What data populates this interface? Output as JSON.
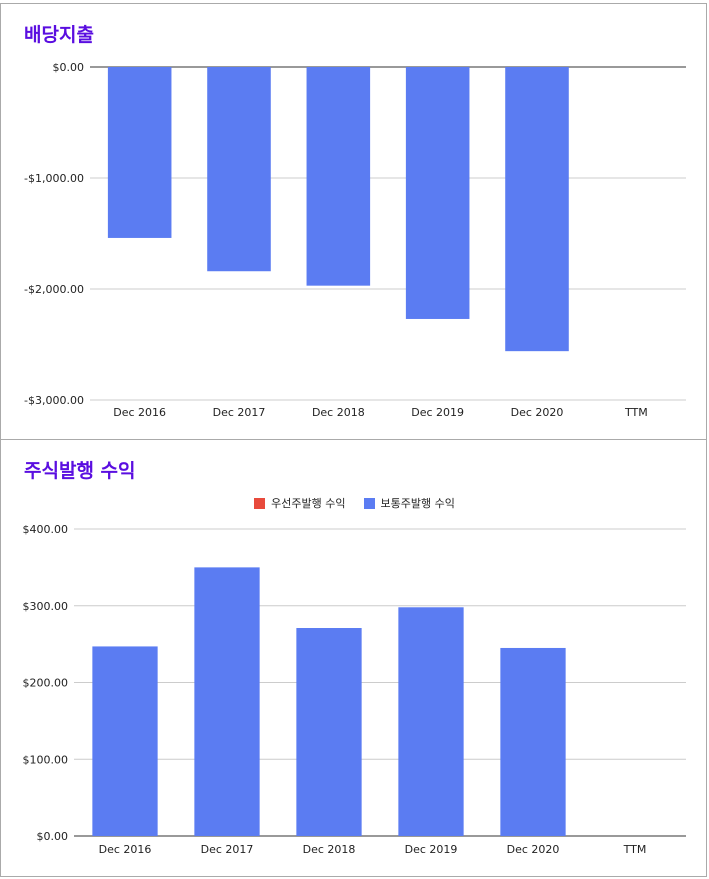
{
  "chart_data": [
    {
      "type": "bar",
      "title": "배당지출",
      "categories": [
        "Dec 2016",
        "Dec 2017",
        "Dec 2018",
        "Dec 2019",
        "Dec 2020",
        "TTM"
      ],
      "values": [
        -1540,
        -1840,
        -1970,
        -2270,
        -2560,
        null
      ],
      "ylim": [
        -3000,
        0
      ],
      "yticks": [
        0,
        -1000,
        -2000,
        -3000
      ],
      "ytick_labels": [
        "$0.00",
        "-$1,000.00",
        "-$2,000.00",
        "-$3,000.00"
      ],
      "grid": true,
      "color": "#5b7cf2"
    },
    {
      "type": "bar",
      "title": "주식발행 수익",
      "categories": [
        "Dec 2016",
        "Dec 2017",
        "Dec 2018",
        "Dec 2019",
        "Dec 2020",
        "TTM"
      ],
      "series": [
        {
          "name": "우선주발행 수익",
          "color": "#e84a3c",
          "values": [
            0,
            0,
            0,
            0,
            0,
            null
          ]
        },
        {
          "name": "보통주발행 수익",
          "color": "#5b7cf2",
          "values": [
            247,
            350,
            271,
            298,
            245,
            null
          ]
        }
      ],
      "ylim": [
        0,
        400
      ],
      "yticks": [
        0,
        100,
        200,
        300,
        400
      ],
      "ytick_labels": [
        "$0.00",
        "$100.00",
        "$200.00",
        "$300.00",
        "$400.00"
      ],
      "legend": "top-center",
      "grid": true
    }
  ]
}
